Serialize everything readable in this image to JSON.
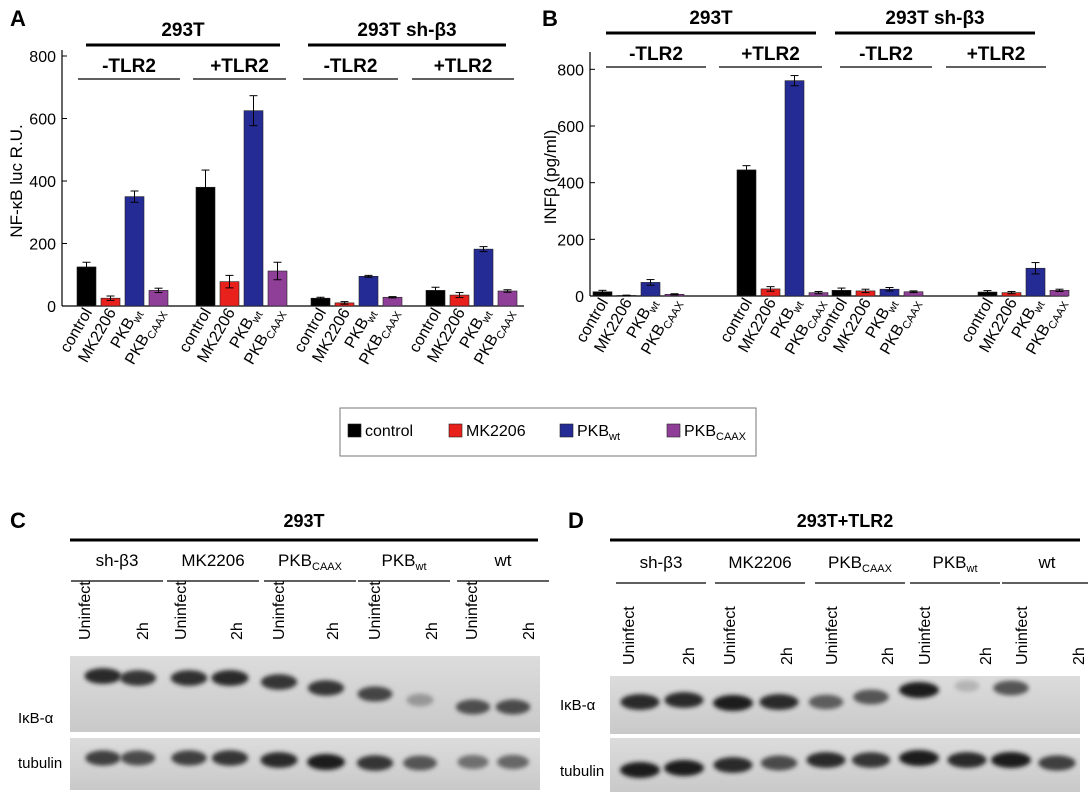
{
  "legend": [
    {
      "name": "control",
      "sub": "",
      "color": "#000000"
    },
    {
      "name": "MK2206",
      "sub": "",
      "color": "#e8211d"
    },
    {
      "name": "PKB",
      "sub": "wt",
      "color": "#252b95"
    },
    {
      "name": "PKB",
      "sub": "CAAX",
      "color": "#8f3f98"
    }
  ],
  "chart_data": [
    {
      "type": "bar",
      "panel": "A",
      "ylabel": "NF-κB luc R.U.",
      "ylim": [
        0,
        800
      ],
      "yticks": [
        0,
        200,
        400,
        600,
        800
      ],
      "grid": false,
      "cell_groups": [
        "293T",
        "293T sh-β3"
      ],
      "condition_groups": [
        "-TLR2",
        "+TLR2",
        "-TLR2",
        "+TLR2"
      ],
      "categories": [
        "control",
        "MK2206",
        "PKB",
        "PKB"
      ],
      "category_subscripts": [
        "",
        "",
        "wt",
        "CAAX"
      ],
      "values": [
        [
          125,
          25,
          350,
          50
        ],
        [
          380,
          78,
          625,
          112
        ],
        [
          25,
          10,
          95,
          28
        ],
        [
          50,
          35,
          182,
          48
        ]
      ],
      "errors": [
        [
          15,
          7,
          18,
          7
        ],
        [
          55,
          20,
          48,
          28
        ],
        [
          3,
          4,
          3,
          2
        ],
        [
          10,
          8,
          8,
          4
        ]
      ]
    },
    {
      "type": "bar",
      "panel": "B",
      "ylabel": "INFβ (pg/ml)",
      "ylim": [
        0,
        840
      ],
      "yticks": [
        0,
        200,
        400,
        600,
        800
      ],
      "grid": false,
      "cell_groups": [
        "293T",
        "293T sh-β3"
      ],
      "condition_groups": [
        "-TLR2",
        "+TLR2",
        "-TLR2",
        "+TLR2"
      ],
      "categories": [
        "control",
        "MK2206",
        "PKB",
        "PKB"
      ],
      "category_subscripts": [
        "",
        "",
        "wt",
        "CAAX"
      ],
      "values": [
        [
          15,
          2,
          48,
          6
        ],
        [
          445,
          25,
          760,
          12
        ],
        [
          20,
          18,
          24,
          15
        ],
        [
          14,
          12,
          98,
          20
        ]
      ],
      "errors": [
        [
          5,
          1,
          10,
          2
        ],
        [
          15,
          8,
          18,
          4
        ],
        [
          8,
          6,
          6,
          3
        ],
        [
          5,
          4,
          20,
          4
        ]
      ]
    }
  ],
  "blots": [
    {
      "panel": "C",
      "title": "293T",
      "groups": [
        {
          "name": "sh-β3",
          "sub": ""
        },
        {
          "name": "MK2206",
          "sub": ""
        },
        {
          "name": "PKB",
          "sub": "CAAX"
        },
        {
          "name": "PKB",
          "sub": "wt"
        },
        {
          "name": "wt",
          "sub": ""
        }
      ],
      "lanes": [
        "Uninfect",
        "2h"
      ],
      "rows": [
        "IκB-α",
        "tubulin"
      ],
      "intensities": [
        [
          0.95,
          0.9,
          0.92,
          0.95,
          0.9,
          0.9,
          0.82,
          0.35,
          0.78,
          0.8
        ],
        [
          0.85,
          0.8,
          0.85,
          0.9,
          0.95,
          1.0,
          0.9,
          0.75,
          0.6,
          0.65
        ]
      ]
    },
    {
      "panel": "D",
      "title": "293T+TLR2",
      "groups": [
        {
          "name": "sh-β3",
          "sub": ""
        },
        {
          "name": "MK2206",
          "sub": ""
        },
        {
          "name": "PKB",
          "sub": "CAAX"
        },
        {
          "name": "PKB",
          "sub": "wt"
        },
        {
          "name": "wt",
          "sub": ""
        }
      ],
      "lanes": [
        "Uninfect",
        "2h"
      ],
      "rows": [
        "IκB-α",
        "tubulin"
      ],
      "intensities": [
        [
          0.95,
          0.95,
          1.0,
          0.95,
          0.7,
          0.75,
          1.0,
          0.15,
          0.75,
          0.0
        ],
        [
          1.0,
          1.0,
          0.95,
          0.8,
          0.95,
          0.9,
          1.0,
          0.95,
          1.0,
          0.85
        ]
      ]
    }
  ]
}
